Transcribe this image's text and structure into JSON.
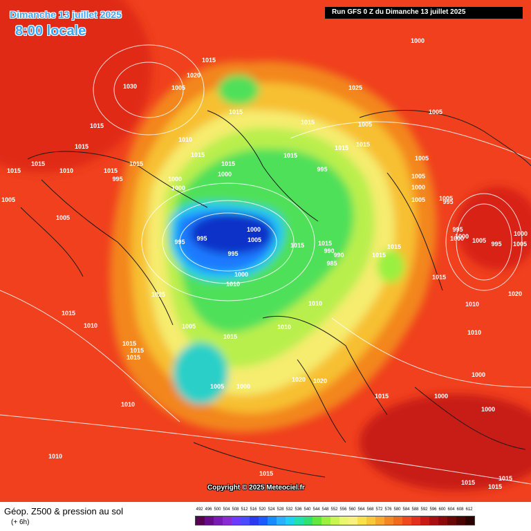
{
  "header": {
    "date_title": "Dimanche 13 juillet 2025",
    "time_title": "8:00 locale",
    "run_info": "Run GFS 0 Z du Dimanche 13 juillet 2025"
  },
  "map": {
    "projection": "polar stereographic, North Pole",
    "isobar_labels": [
      "1000",
      "1015",
      "1020",
      "1025",
      "1030",
      "1005",
      "1015",
      "1005",
      "1015",
      "1015",
      "1005",
      "1015",
      "1010",
      "1015",
      "1015",
      "1015",
      "1015",
      "1015",
      "1010",
      "1015",
      "1015",
      "1015",
      "1015",
      "1000",
      "1005",
      "995",
      "1000",
      "995",
      "1005",
      "1000",
      "1005",
      "1000",
      "1005",
      "1005",
      "995",
      "1005",
      "995",
      "1000",
      "1005",
      "995",
      "1000",
      "1005",
      "1000",
      "995",
      "995",
      "1000",
      "1005",
      "1015",
      "1015",
      "1015",
      "1015",
      "990",
      "990",
      "985",
      "995",
      "1000",
      "1010",
      "1015",
      "1020",
      "1025",
      "1010",
      "1010",
      "1015",
      "1010",
      "1005",
      "1010",
      "1010",
      "1015",
      "1015",
      "1015",
      "1015",
      "1020",
      "1020",
      "1015",
      "1005",
      "1000",
      "1000",
      "1000",
      "1000",
      "1010",
      "1010",
      "1015",
      "1015",
      "1015",
      "1015"
    ],
    "colors": {
      "background_red": "#f23a1a",
      "low_center": "#1030c0",
      "coast": "#202020",
      "isobar": "#ffffff"
    }
  },
  "copyright": "Copyright © 2025 Meteociel.fr",
  "footer": {
    "title": "Géop. Z500 & pression au sol",
    "subtitle": "(+ 6h)",
    "legend": {
      "labels": [
        "492",
        "496",
        "500",
        "504",
        "508",
        "512",
        "516",
        "520",
        "524",
        "528",
        "532",
        "536",
        "540",
        "544",
        "548",
        "552",
        "556",
        "560",
        "564",
        "568",
        "572",
        "576",
        "580",
        "584",
        "588",
        "592",
        "596",
        "600",
        "604",
        "608",
        "612"
      ],
      "colors": [
        "#5a0050",
        "#6a0a8a",
        "#7a1ab0",
        "#8a2ad0",
        "#6c3aff",
        "#4a4aff",
        "#2a3af0",
        "#1a5aff",
        "#1a8aff",
        "#2ab0ff",
        "#20d0f0",
        "#20e0b0",
        "#30e070",
        "#60e840",
        "#9af040",
        "#c8f550",
        "#eaf570",
        "#f8f080",
        "#fae04a",
        "#f8c83a",
        "#f8a830",
        "#f08828",
        "#f06a22",
        "#ee4a1e",
        "#e2301a",
        "#c81a14",
        "#a81010",
        "#8a0a0a",
        "#6a0606",
        "#4a0404",
        "#2a0202"
      ]
    }
  }
}
